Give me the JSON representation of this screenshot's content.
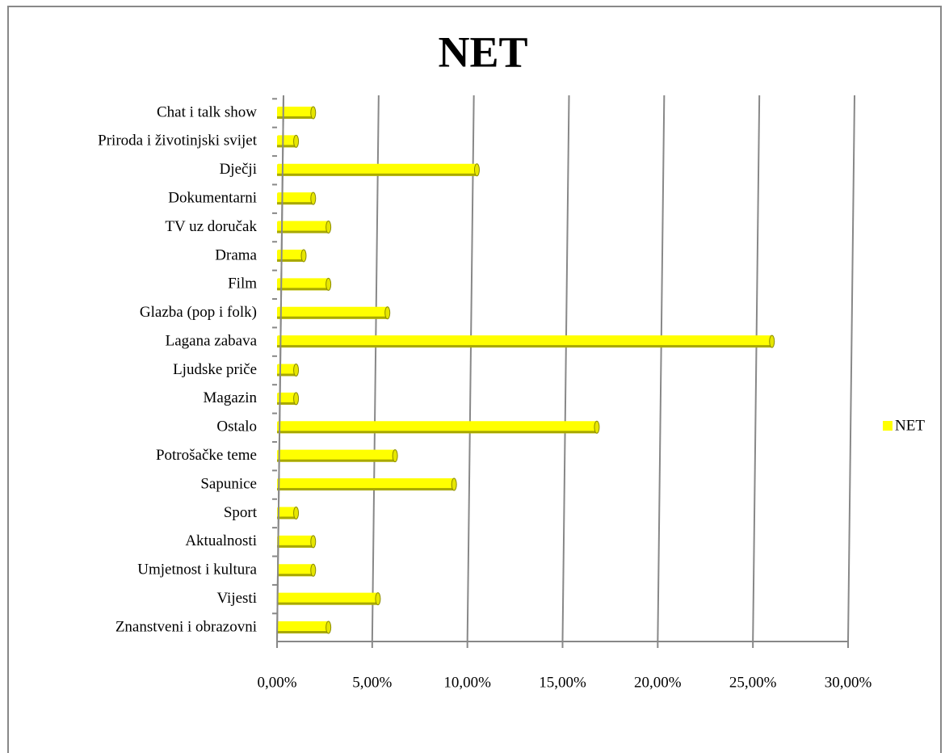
{
  "chart_data": {
    "type": "bar",
    "orientation": "horizontal",
    "title": "NET",
    "categories": [
      "Chat i talk show",
      "Priroda i životinjski svijet",
      "Dječji",
      "Dokumentarni",
      "TV uz doručak",
      "Drama",
      "Film",
      "Glazba (pop i folk)",
      "Lagana zabava",
      "Ljudske priče",
      "Magazin",
      "Ostalo",
      "Potrošačke teme",
      "Sapunice",
      "Sport",
      "Aktualnosti",
      "Umjetnost i kultura",
      "Vijesti",
      "Znanstveni i obrazovni"
    ],
    "series": [
      {
        "name": "NET",
        "color": "#ffff00",
        "values": [
          1.9,
          1.0,
          10.5,
          1.9,
          2.7,
          1.4,
          2.7,
          5.8,
          26.0,
          1.0,
          1.0,
          16.8,
          6.2,
          9.3,
          1.0,
          1.9,
          1.9,
          5.3,
          2.7
        ]
      }
    ],
    "xlim": [
      0,
      30
    ],
    "xticks": [
      {
        "value": 0,
        "label": "0,00%"
      },
      {
        "value": 5,
        "label": "5,00%"
      },
      {
        "value": 10,
        "label": "10,00%"
      },
      {
        "value": 15,
        "label": "15,00%"
      },
      {
        "value": 20,
        "label": "20,00%"
      },
      {
        "value": 25,
        "label": "25,00%"
      },
      {
        "value": 30,
        "label": "30,00%"
      }
    ],
    "grid": true,
    "legend": "right"
  }
}
